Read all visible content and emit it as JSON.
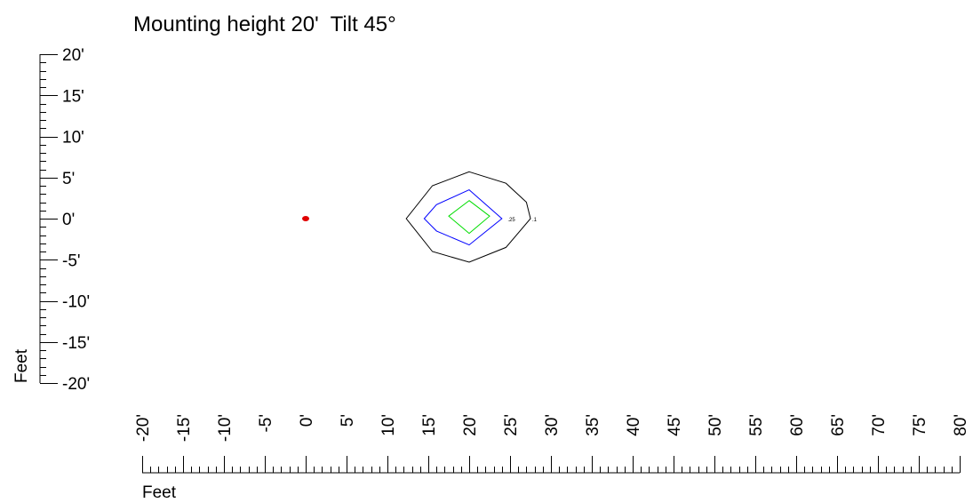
{
  "chart_data": {
    "type": "contour",
    "title": "Mounting height 20'  Tilt 45°",
    "xlabel": "Feet",
    "ylabel": "Feet",
    "xlim": [
      -20,
      80
    ],
    "ylim": [
      -20,
      20
    ],
    "x_ticks": [
      "-20'",
      "-15'",
      "-10'",
      "-5'",
      "0'",
      "5'",
      "10'",
      "15'",
      "20'",
      "25'",
      "30'",
      "35'",
      "40'",
      "45'",
      "50'",
      "55'",
      "60'",
      "65'",
      "70'",
      "75'",
      "80'"
    ],
    "y_ticks": [
      "20'",
      "15'",
      "10'",
      "5'",
      "0'",
      "-5'",
      "-10'",
      "-15'",
      "-20'"
    ],
    "luminaire": {
      "x": 0,
      "y": 0,
      "color": "#e00000"
    },
    "contours": [
      {
        "label": ".1",
        "color": "#000000",
        "label_at": [
          27.5,
          0
        ],
        "points": [
          [
            20,
            5.7
          ],
          [
            24.5,
            4.3
          ],
          [
            27,
            2
          ],
          [
            27.5,
            0
          ],
          [
            24.5,
            -3.5
          ],
          [
            20,
            -5.3
          ],
          [
            15.5,
            -4
          ],
          [
            12.3,
            0
          ],
          [
            15.5,
            4
          ]
        ]
      },
      {
        "label": ".25",
        "color": "#0000ff",
        "label_at": [
          24.5,
          0
        ],
        "points": [
          [
            20,
            3.5
          ],
          [
            24,
            0
          ],
          [
            20,
            -3.2
          ],
          [
            16,
            -1.5
          ],
          [
            14.5,
            0
          ],
          [
            16,
            1.7
          ]
        ]
      },
      {
        "label": "",
        "color": "#00dd00",
        "points": [
          [
            20,
            2.2
          ],
          [
            22.5,
            0.3
          ],
          [
            20,
            -1.8
          ],
          [
            17.5,
            0.3
          ]
        ]
      }
    ]
  }
}
